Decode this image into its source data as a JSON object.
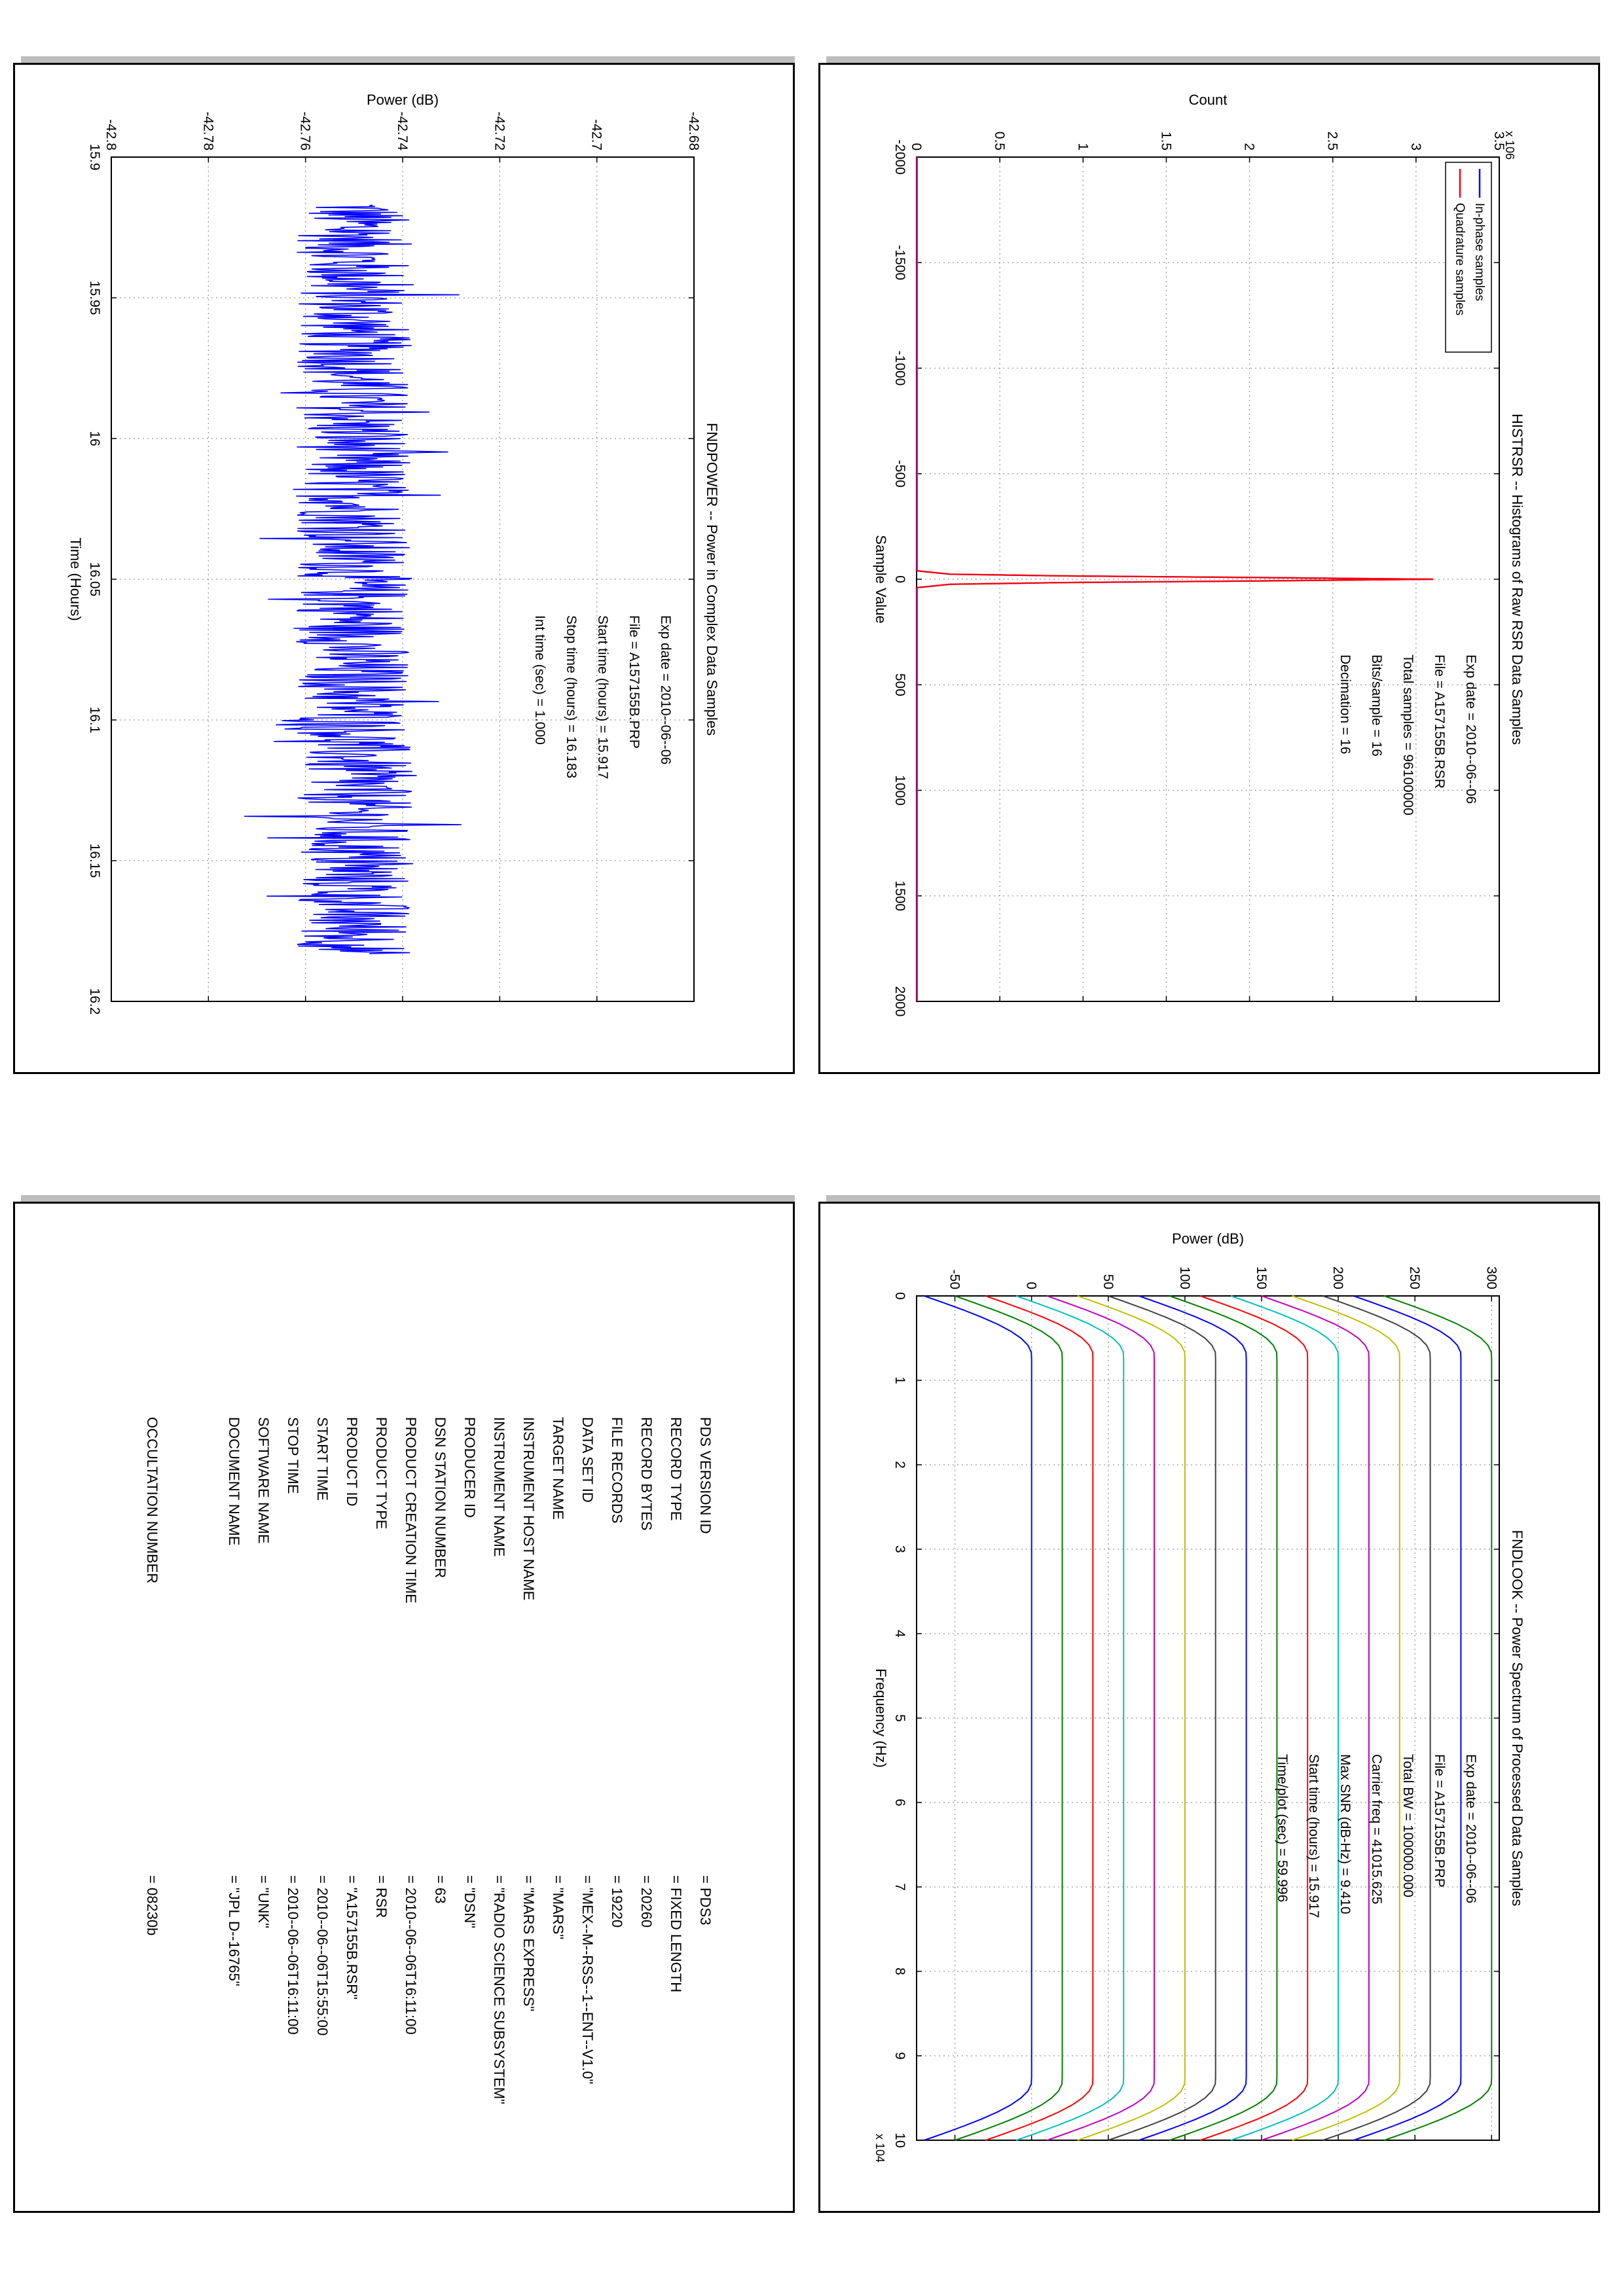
{
  "chart_data": [
    {
      "type": "line",
      "title": "HISTRSR -- Histograms of Raw RSR Data Samples",
      "xlabel": "Sample Value",
      "ylabel": "Count",
      "y_exponent_label": "x 10^6",
      "xlim": [
        -2000,
        2000
      ],
      "ylim": [
        0,
        3.5
      ],
      "grid": true,
      "legend_position": "top-left",
      "x_ticks": [
        "-2000",
        "-1500",
        "-1000",
        "-500",
        "0",
        "500",
        "1000",
        "1500",
        "2000"
      ],
      "y_ticks": [
        "0",
        "0.5",
        "1",
        "1.5",
        "2",
        "2.5",
        "3",
        "3.5"
      ],
      "series": [
        {
          "name": "In-phase samples",
          "color": "#0000ff",
          "x": [
            -2000,
            -40,
            -24,
            -16,
            -8,
            0,
            8,
            16,
            24,
            40,
            2000
          ],
          "y": [
            0,
            0,
            0.2,
            0.85,
            2.05,
            3.1,
            2.05,
            0.85,
            0.2,
            0,
            0
          ]
        },
        {
          "name": "Quadrature samples",
          "color": "#ff0000",
          "x": [
            -2000,
            -40,
            -24,
            -16,
            -8,
            0,
            8,
            16,
            24,
            40,
            2000
          ],
          "y": [
            0,
            0,
            0.2,
            0.85,
            2.05,
            3.1,
            2.05,
            0.85,
            0.2,
            0,
            0
          ]
        }
      ],
      "annotations": {
        "exp_date": "Exp date = 2010--06--06",
        "file": "File = A157155B.RSR",
        "total_samples": "Total samples =   96100000",
        "bits_per_sample": "Bits/sample    =          16",
        "decimation": "Decimation     =          16"
      }
    },
    {
      "type": "line",
      "title": "FNDPOWER -- Power in Complex Data Samples",
      "xlabel": "Time (Hours)",
      "ylabel": "Power (dB)",
      "xlim": [
        15.9,
        16.2
      ],
      "ylim": [
        -42.8,
        -42.68
      ],
      "grid": true,
      "x_ticks": [
        "15.9",
        "15.95",
        "16",
        "16.05",
        "16.1",
        "16.15",
        "16.2"
      ],
      "y_ticks": [
        "-42.8",
        "-42.78",
        "-42.76",
        "-42.74",
        "-42.72",
        "-42.7",
        "-42.68"
      ],
      "series": [
        {
          "color": "#0000ff",
          "x_start": 15.917,
          "x_end": 16.183,
          "mean": -42.75,
          "amplitude": 0.012
        }
      ],
      "annotations": {
        "exp_date": "Exp date = 2010--06--06",
        "file": "File = A157155B.PRP",
        "start_time": "Start time (hours) = 15.917",
        "stop_time": "Stop time (hours) =   16.183",
        "int_time": "Int time (sec) =        1.000"
      }
    },
    {
      "type": "line",
      "title": "FNDLOOK -- Power Spectrum of Processed Data Samples",
      "xlabel": "Frequency (Hz)",
      "ylabel": "Power (dB)",
      "x_exponent_label": "x 10^4",
      "xlim": [
        0,
        10
      ],
      "ylim": [
        -75,
        305
      ],
      "grid": true,
      "x_ticks": [
        "0",
        "1",
        "2",
        "3",
        "4",
        "5",
        "6",
        "7",
        "8",
        "9",
        "10"
      ],
      "y_ticks": [
        "-50",
        "0",
        "50",
        "100",
        "150",
        "200",
        "250",
        "300"
      ],
      "series": [
        {
          "color": "#0000ff",
          "offset": -70
        },
        {
          "color": "#007f00",
          "offset": -50
        },
        {
          "color": "#ff0000",
          "offset": -30
        },
        {
          "color": "#00bfbf",
          "offset": -10
        },
        {
          "color": "#bf00bf",
          "offset": 10
        },
        {
          "color": "#bfbf00",
          "offset": 30
        },
        {
          "color": "#404040",
          "offset": 50
        },
        {
          "color": "#0000ff",
          "offset": 70
        },
        {
          "color": "#007f00",
          "offset": 90
        },
        {
          "color": "#ff0000",
          "offset": 110
        },
        {
          "color": "#00bfbf",
          "offset": 130
        },
        {
          "color": "#bf00bf",
          "offset": 150
        },
        {
          "color": "#bfbf00",
          "offset": 170
        },
        {
          "color": "#404040",
          "offset": 190
        },
        {
          "color": "#0000ff",
          "offset": 210
        },
        {
          "color": "#007f00",
          "offset": 230
        }
      ],
      "annotations": {
        "exp_date": "Exp date = 2010--06--06",
        "file": "File = A157155B.PRP",
        "total_bw": "Total BW =    100000.000",
        "carrier_freq": "Carrier freq =   41015.625",
        "max_snr": "Max SNR (dB-Hz) =       9.410",
        "start_time": "Start time (hours) =   15.917",
        "time_plot": "Time/plot (sec) =     59.996"
      }
    }
  ],
  "metadata_table": [
    {
      "key": "PDS VERSION ID",
      "value": "=   PDS3"
    },
    {
      "key": "RECORD TYPE",
      "value": "=   FIXED LENGTH"
    },
    {
      "key": "RECORD BYTES",
      "value": "=   20260"
    },
    {
      "key": "FILE RECORDS",
      "value": "=   19220"
    },
    {
      "key": "DATA SET ID",
      "value": "=   \"MEX--M--RSS--1--ENT--V1.0\""
    },
    {
      "key": "TARGET NAME",
      "value": "=   \"MARS\""
    },
    {
      "key": "INSTRUMENT HOST NAME",
      "value": "=   \"MARS EXPRESS\""
    },
    {
      "key": "INSTRUMENT NAME",
      "value": "=   \"RADIO SCIENCE SUBSYSTEM\""
    },
    {
      "key": "PRODUCER ID",
      "value": "=   \"DSN\""
    },
    {
      "key": "DSN STATION NUMBER",
      "value": "=   63"
    },
    {
      "key": "PRODUCT CREATION TIME",
      "value": "=   2010--06--06T16:11:00"
    },
    {
      "key": "PRODUCT TYPE",
      "value": "=   RSR"
    },
    {
      "key": "PRODUCT ID",
      "value": "=   \"A157155B.RSR\""
    },
    {
      "key": "START TIME",
      "value": "=   2010--06--06T15:55:00"
    },
    {
      "key": "STOP TIME",
      "value": "=   2010--06--06T16:11:00"
    },
    {
      "key": "SOFTWARE NAME",
      "value": "=   \"UNK\""
    },
    {
      "key": "DOCUMENT NAME",
      "value": "=   \"JPL D--16765\""
    },
    {
      "key": "OCCULTATION NUMBER",
      "value": "=   08230b",
      "gap_before": true
    }
  ]
}
